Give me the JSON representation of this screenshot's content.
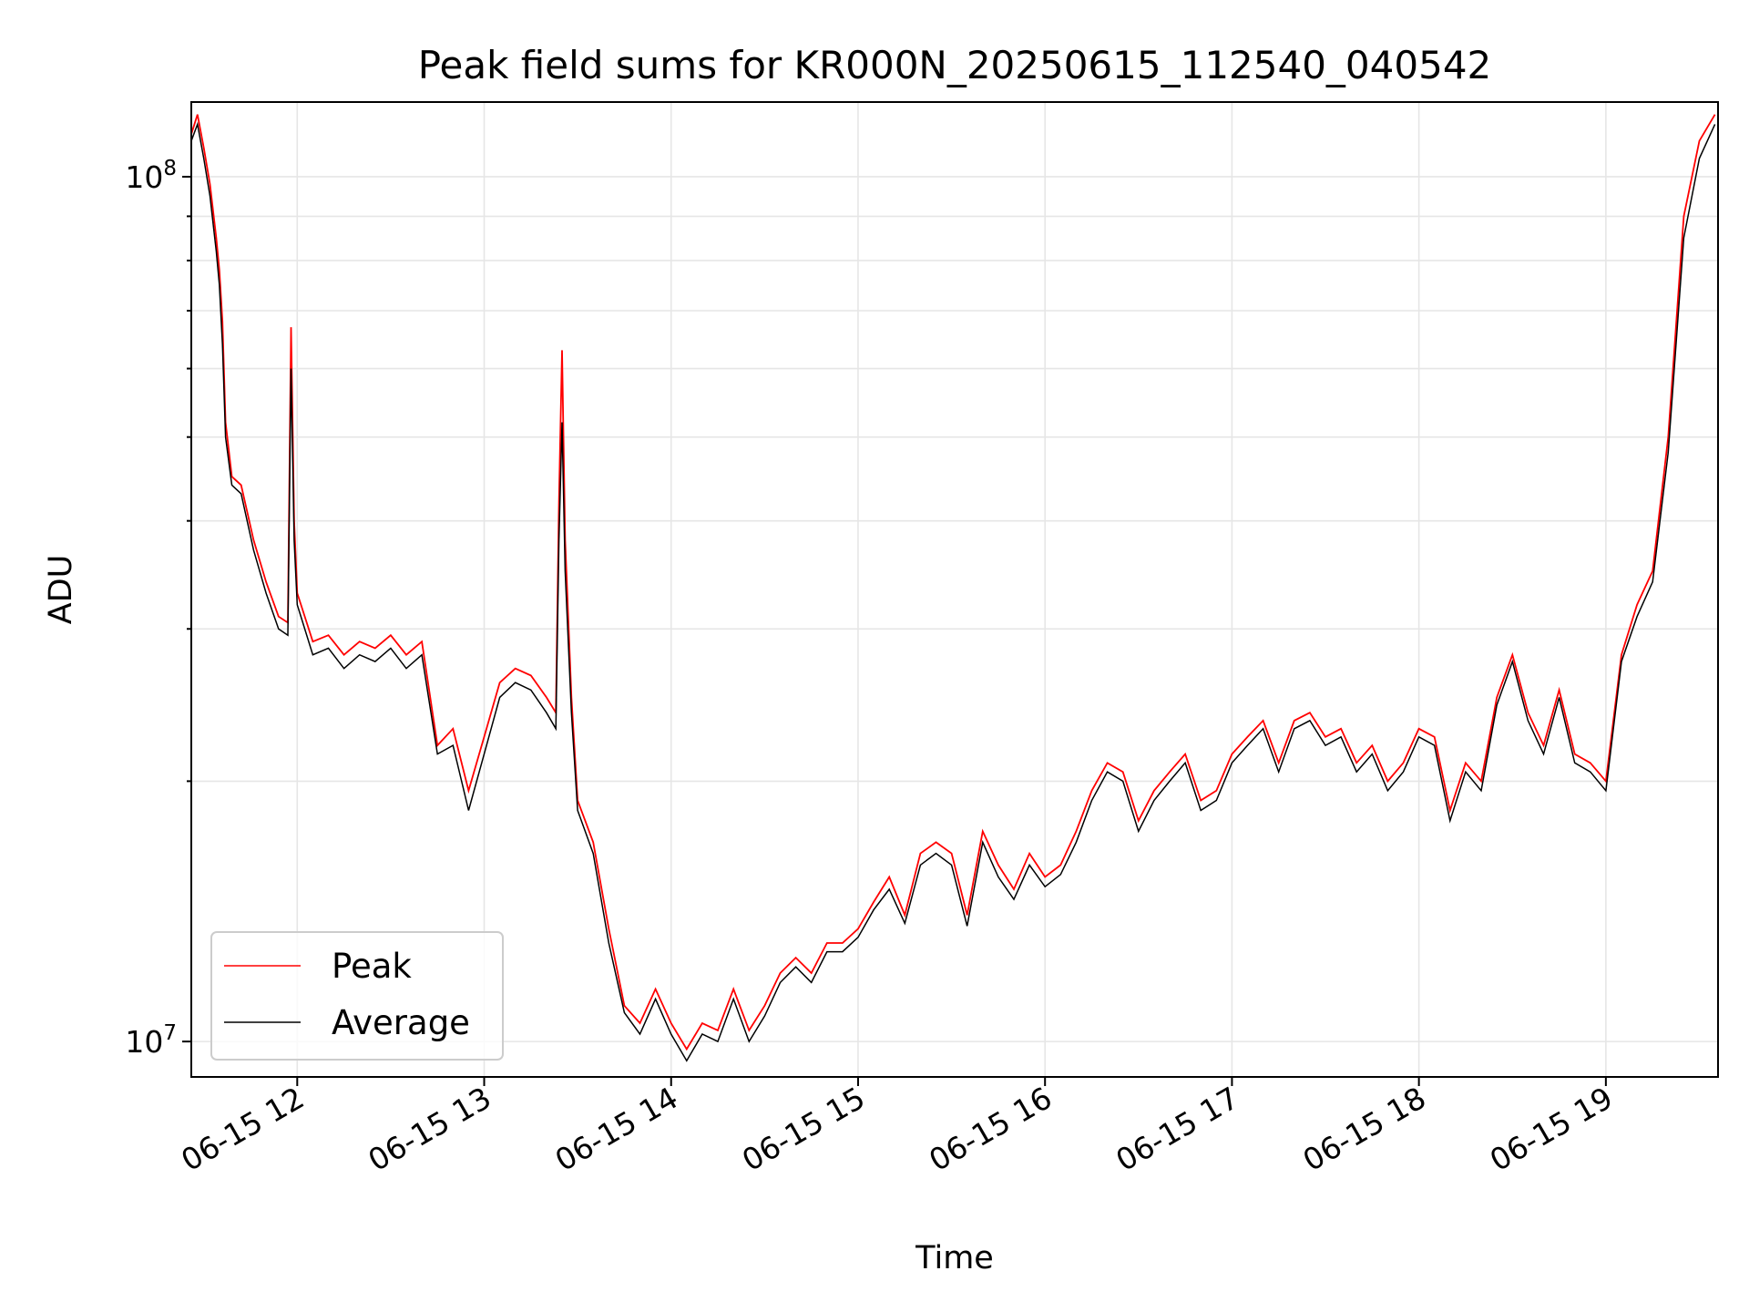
{
  "chart_data": {
    "type": "line",
    "title": "Peak field sums for KR000N_20250615_112540_040542",
    "xlabel": "Time",
    "ylabel": "ADU",
    "yscale": "log",
    "xlim": [
      "2025-06-15 11:26",
      "2025-06-15 19:36"
    ],
    "ylim": [
      9100000,
      122000000
    ],
    "grid": true,
    "legend_position": "lower-left",
    "x_ticks": [
      {
        "value": "2025-06-15 12:00",
        "label": "06-15 12"
      },
      {
        "value": "2025-06-15 13:00",
        "label": "06-15 13"
      },
      {
        "value": "2025-06-15 14:00",
        "label": "06-15 14"
      },
      {
        "value": "2025-06-15 15:00",
        "label": "06-15 15"
      },
      {
        "value": "2025-06-15 16:00",
        "label": "06-15 16"
      },
      {
        "value": "2025-06-15 17:00",
        "label": "06-15 17"
      },
      {
        "value": "2025-06-15 18:00",
        "label": "06-15 18"
      },
      {
        "value": "2025-06-15 19:00",
        "label": "06-15 19"
      }
    ],
    "y_ticks": [
      {
        "value": 10000000,
        "base": "10",
        "exp": "7"
      },
      {
        "value": 100000000,
        "base": "10",
        "exp": "8"
      }
    ],
    "series": [
      {
        "name": "Peak",
        "color": "#ff0000",
        "points": [
          [
            "2025-06-15 11:26",
            112000000
          ],
          [
            "2025-06-15 11:28",
            118000000
          ],
          [
            "2025-06-15 11:30",
            108000000
          ],
          [
            "2025-06-15 11:32",
            98000000
          ],
          [
            "2025-06-15 11:34",
            85000000
          ],
          [
            "2025-06-15 11:35",
            78000000
          ],
          [
            "2025-06-15 11:36",
            68000000
          ],
          [
            "2025-06-15 11:37",
            52000000
          ],
          [
            "2025-06-15 11:39",
            45000000
          ],
          [
            "2025-06-15 11:42",
            44000000
          ],
          [
            "2025-06-15 11:46",
            38000000
          ],
          [
            "2025-06-15 11:50",
            34000000
          ],
          [
            "2025-06-15 11:54",
            31000000
          ],
          [
            "2025-06-15 11:57",
            30500000
          ],
          [
            "2025-06-15 11:58",
            67000000
          ],
          [
            "2025-06-15 11:59",
            40000000
          ],
          [
            "2025-06-15 12:00",
            33000000
          ],
          [
            "2025-06-15 12:05",
            29000000
          ],
          [
            "2025-06-15 12:10",
            29500000
          ],
          [
            "2025-06-15 12:15",
            28000000
          ],
          [
            "2025-06-15 12:20",
            29000000
          ],
          [
            "2025-06-15 12:25",
            28500000
          ],
          [
            "2025-06-15 12:30",
            29500000
          ],
          [
            "2025-06-15 12:35",
            28000000
          ],
          [
            "2025-06-15 12:40",
            29000000
          ],
          [
            "2025-06-15 12:45",
            22000000
          ],
          [
            "2025-06-15 12:50",
            23000000
          ],
          [
            "2025-06-15 12:55",
            19500000
          ],
          [
            "2025-06-15 13:00",
            22500000
          ],
          [
            "2025-06-15 13:05",
            26000000
          ],
          [
            "2025-06-15 13:10",
            27000000
          ],
          [
            "2025-06-15 13:15",
            26500000
          ],
          [
            "2025-06-15 13:20",
            25000000
          ],
          [
            "2025-06-15 13:23",
            24000000
          ],
          [
            "2025-06-15 13:24",
            42000000
          ],
          [
            "2025-06-15 13:25",
            63000000
          ],
          [
            "2025-06-15 13:26",
            38000000
          ],
          [
            "2025-06-15 13:28",
            25000000
          ],
          [
            "2025-06-15 13:30",
            19000000
          ],
          [
            "2025-06-15 13:35",
            17000000
          ],
          [
            "2025-06-15 13:40",
            13500000
          ],
          [
            "2025-06-15 13:45",
            11000000
          ],
          [
            "2025-06-15 13:50",
            10500000
          ],
          [
            "2025-06-15 13:55",
            11500000
          ],
          [
            "2025-06-15 14:00",
            10500000
          ],
          [
            "2025-06-15 14:05",
            9800000
          ],
          [
            "2025-06-15 14:10",
            10500000
          ],
          [
            "2025-06-15 14:15",
            10300000
          ],
          [
            "2025-06-15 14:20",
            11500000
          ],
          [
            "2025-06-15 14:25",
            10300000
          ],
          [
            "2025-06-15 14:30",
            11000000
          ],
          [
            "2025-06-15 14:35",
            12000000
          ],
          [
            "2025-06-15 14:40",
            12500000
          ],
          [
            "2025-06-15 14:45",
            12000000
          ],
          [
            "2025-06-15 14:50",
            13000000
          ],
          [
            "2025-06-15 14:55",
            13000000
          ],
          [
            "2025-06-15 15:00",
            13500000
          ],
          [
            "2025-06-15 15:05",
            14500000
          ],
          [
            "2025-06-15 15:10",
            15500000
          ],
          [
            "2025-06-15 15:15",
            14000000
          ],
          [
            "2025-06-15 15:20",
            16500000
          ],
          [
            "2025-06-15 15:25",
            17000000
          ],
          [
            "2025-06-15 15:30",
            16500000
          ],
          [
            "2025-06-15 15:35",
            14000000
          ],
          [
            "2025-06-15 15:40",
            17500000
          ],
          [
            "2025-06-15 15:45",
            16000000
          ],
          [
            "2025-06-15 15:50",
            15000000
          ],
          [
            "2025-06-15 15:55",
            16500000
          ],
          [
            "2025-06-15 16:00",
            15500000
          ],
          [
            "2025-06-15 16:05",
            16000000
          ],
          [
            "2025-06-15 16:10",
            17500000
          ],
          [
            "2025-06-15 16:15",
            19500000
          ],
          [
            "2025-06-15 16:20",
            21000000
          ],
          [
            "2025-06-15 16:25",
            20500000
          ],
          [
            "2025-06-15 16:30",
            18000000
          ],
          [
            "2025-06-15 16:35",
            19500000
          ],
          [
            "2025-06-15 16:40",
            20500000
          ],
          [
            "2025-06-15 16:45",
            21500000
          ],
          [
            "2025-06-15 16:50",
            19000000
          ],
          [
            "2025-06-15 16:55",
            19500000
          ],
          [
            "2025-06-15 17:00",
            21500000
          ],
          [
            "2025-06-15 17:05",
            22500000
          ],
          [
            "2025-06-15 17:10",
            23500000
          ],
          [
            "2025-06-15 17:15",
            21000000
          ],
          [
            "2025-06-15 17:20",
            23500000
          ],
          [
            "2025-06-15 17:25",
            24000000
          ],
          [
            "2025-06-15 17:30",
            22500000
          ],
          [
            "2025-06-15 17:35",
            23000000
          ],
          [
            "2025-06-15 17:40",
            21000000
          ],
          [
            "2025-06-15 17:45",
            22000000
          ],
          [
            "2025-06-15 17:50",
            20000000
          ],
          [
            "2025-06-15 17:55",
            21000000
          ],
          [
            "2025-06-15 18:00",
            23000000
          ],
          [
            "2025-06-15 18:05",
            22500000
          ],
          [
            "2025-06-15 18:10",
            18500000
          ],
          [
            "2025-06-15 18:15",
            21000000
          ],
          [
            "2025-06-15 18:20",
            20000000
          ],
          [
            "2025-06-15 18:25",
            25000000
          ],
          [
            "2025-06-15 18:30",
            28000000
          ],
          [
            "2025-06-15 18:35",
            24000000
          ],
          [
            "2025-06-15 18:40",
            22000000
          ],
          [
            "2025-06-15 18:45",
            25500000
          ],
          [
            "2025-06-15 18:50",
            21500000
          ],
          [
            "2025-06-15 18:55",
            21000000
          ],
          [
            "2025-06-15 19:00",
            20000000
          ],
          [
            "2025-06-15 19:05",
            28000000
          ],
          [
            "2025-06-15 19:10",
            32000000
          ],
          [
            "2025-06-15 19:15",
            35000000
          ],
          [
            "2025-06-15 19:20",
            50000000
          ],
          [
            "2025-06-15 19:25",
            90000000
          ],
          [
            "2025-06-15 19:30",
            110000000
          ],
          [
            "2025-06-15 19:35",
            118000000
          ]
        ]
      },
      {
        "name": "Average",
        "color": "#000000",
        "points": [
          [
            "2025-06-15 11:26",
            110000000
          ],
          [
            "2025-06-15 11:28",
            115000000
          ],
          [
            "2025-06-15 11:30",
            105000000
          ],
          [
            "2025-06-15 11:32",
            95000000
          ],
          [
            "2025-06-15 11:34",
            82000000
          ],
          [
            "2025-06-15 11:35",
            75000000
          ],
          [
            "2025-06-15 11:36",
            64000000
          ],
          [
            "2025-06-15 11:37",
            50000000
          ],
          [
            "2025-06-15 11:39",
            44000000
          ],
          [
            "2025-06-15 11:42",
            43000000
          ],
          [
            "2025-06-15 11:46",
            37000000
          ],
          [
            "2025-06-15 11:50",
            33000000
          ],
          [
            "2025-06-15 11:54",
            30000000
          ],
          [
            "2025-06-15 11:57",
            29500000
          ],
          [
            "2025-06-15 11:58",
            60000000
          ],
          [
            "2025-06-15 11:59",
            38000000
          ],
          [
            "2025-06-15 12:00",
            32000000
          ],
          [
            "2025-06-15 12:05",
            28000000
          ],
          [
            "2025-06-15 12:10",
            28500000
          ],
          [
            "2025-06-15 12:15",
            27000000
          ],
          [
            "2025-06-15 12:20",
            28000000
          ],
          [
            "2025-06-15 12:25",
            27500000
          ],
          [
            "2025-06-15 12:30",
            28500000
          ],
          [
            "2025-06-15 12:35",
            27000000
          ],
          [
            "2025-06-15 12:40",
            28000000
          ],
          [
            "2025-06-15 12:45",
            21500000
          ],
          [
            "2025-06-15 12:50",
            22000000
          ],
          [
            "2025-06-15 12:55",
            18500000
          ],
          [
            "2025-06-15 13:00",
            21500000
          ],
          [
            "2025-06-15 13:05",
            25000000
          ],
          [
            "2025-06-15 13:10",
            26000000
          ],
          [
            "2025-06-15 13:15",
            25500000
          ],
          [
            "2025-06-15 13:20",
            24000000
          ],
          [
            "2025-06-15 13:23",
            23000000
          ],
          [
            "2025-06-15 13:24",
            38000000
          ],
          [
            "2025-06-15 13:25",
            52000000
          ],
          [
            "2025-06-15 13:26",
            35000000
          ],
          [
            "2025-06-15 13:28",
            24000000
          ],
          [
            "2025-06-15 13:30",
            18500000
          ],
          [
            "2025-06-15 13:35",
            16500000
          ],
          [
            "2025-06-15 13:40",
            13000000
          ],
          [
            "2025-06-15 13:45",
            10800000
          ],
          [
            "2025-06-15 13:50",
            10200000
          ],
          [
            "2025-06-15 13:55",
            11200000
          ],
          [
            "2025-06-15 14:00",
            10200000
          ],
          [
            "2025-06-15 14:05",
            9500000
          ],
          [
            "2025-06-15 14:10",
            10200000
          ],
          [
            "2025-06-15 14:15",
            10000000
          ],
          [
            "2025-06-15 14:20",
            11200000
          ],
          [
            "2025-06-15 14:25",
            10000000
          ],
          [
            "2025-06-15 14:30",
            10700000
          ],
          [
            "2025-06-15 14:35",
            11700000
          ],
          [
            "2025-06-15 14:40",
            12200000
          ],
          [
            "2025-06-15 14:45",
            11700000
          ],
          [
            "2025-06-15 14:50",
            12700000
          ],
          [
            "2025-06-15 14:55",
            12700000
          ],
          [
            "2025-06-15 15:00",
            13200000
          ],
          [
            "2025-06-15 15:05",
            14200000
          ],
          [
            "2025-06-15 15:10",
            15000000
          ],
          [
            "2025-06-15 15:15",
            13700000
          ],
          [
            "2025-06-15 15:20",
            16000000
          ],
          [
            "2025-06-15 15:25",
            16500000
          ],
          [
            "2025-06-15 15:30",
            16000000
          ],
          [
            "2025-06-15 15:35",
            13600000
          ],
          [
            "2025-06-15 15:40",
            17000000
          ],
          [
            "2025-06-15 15:45",
            15500000
          ],
          [
            "2025-06-15 15:50",
            14600000
          ],
          [
            "2025-06-15 15:55",
            16000000
          ],
          [
            "2025-06-15 16:00",
            15100000
          ],
          [
            "2025-06-15 16:05",
            15600000
          ],
          [
            "2025-06-15 16:10",
            17000000
          ],
          [
            "2025-06-15 16:15",
            19000000
          ],
          [
            "2025-06-15 16:20",
            20500000
          ],
          [
            "2025-06-15 16:25",
            20000000
          ],
          [
            "2025-06-15 16:30",
            17500000
          ],
          [
            "2025-06-15 16:35",
            19000000
          ],
          [
            "2025-06-15 16:40",
            20000000
          ],
          [
            "2025-06-15 16:45",
            21000000
          ],
          [
            "2025-06-15 16:50",
            18500000
          ],
          [
            "2025-06-15 16:55",
            19000000
          ],
          [
            "2025-06-15 17:00",
            21000000
          ],
          [
            "2025-06-15 17:05",
            22000000
          ],
          [
            "2025-06-15 17:10",
            23000000
          ],
          [
            "2025-06-15 17:15",
            20500000
          ],
          [
            "2025-06-15 17:20",
            23000000
          ],
          [
            "2025-06-15 17:25",
            23500000
          ],
          [
            "2025-06-15 17:30",
            22000000
          ],
          [
            "2025-06-15 17:35",
            22500000
          ],
          [
            "2025-06-15 17:40",
            20500000
          ],
          [
            "2025-06-15 17:45",
            21500000
          ],
          [
            "2025-06-15 17:50",
            19500000
          ],
          [
            "2025-06-15 17:55",
            20500000
          ],
          [
            "2025-06-15 18:00",
            22500000
          ],
          [
            "2025-06-15 18:05",
            22000000
          ],
          [
            "2025-06-15 18:10",
            18000000
          ],
          [
            "2025-06-15 18:15",
            20500000
          ],
          [
            "2025-06-15 18:20",
            19500000
          ],
          [
            "2025-06-15 18:25",
            24500000
          ],
          [
            "2025-06-15 18:30",
            27500000
          ],
          [
            "2025-06-15 18:35",
            23500000
          ],
          [
            "2025-06-15 18:40",
            21500000
          ],
          [
            "2025-06-15 18:45",
            25000000
          ],
          [
            "2025-06-15 18:50",
            21000000
          ],
          [
            "2025-06-15 18:55",
            20500000
          ],
          [
            "2025-06-15 19:00",
            19500000
          ],
          [
            "2025-06-15 19:05",
            27500000
          ],
          [
            "2025-06-15 19:10",
            31000000
          ],
          [
            "2025-06-15 19:15",
            34000000
          ],
          [
            "2025-06-15 19:20",
            48000000
          ],
          [
            "2025-06-15 19:25",
            85000000
          ],
          [
            "2025-06-15 19:30",
            105000000
          ],
          [
            "2025-06-15 19:35",
            115000000
          ]
        ]
      }
    ]
  }
}
